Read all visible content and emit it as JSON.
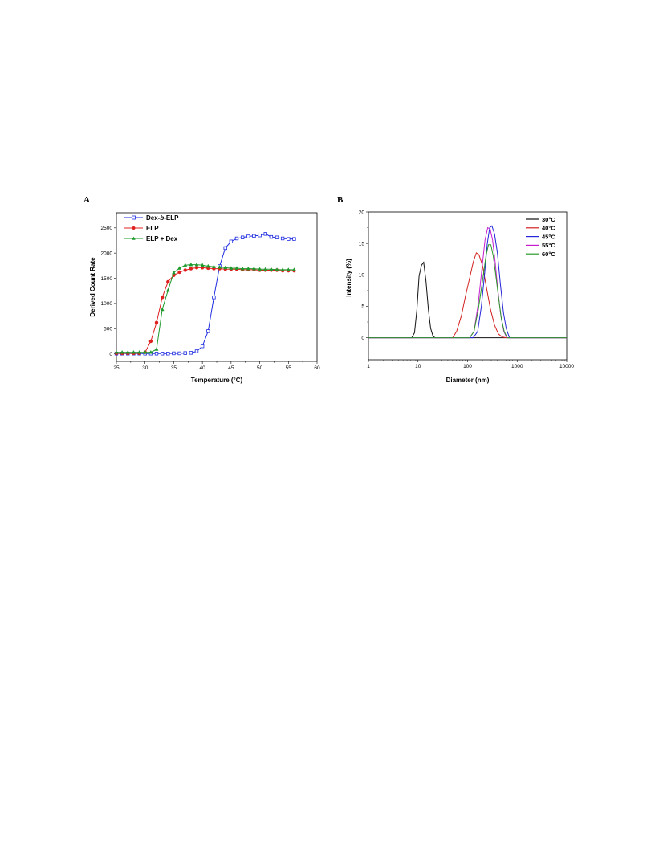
{
  "panels": {
    "a_label": "A",
    "b_label": "B"
  },
  "chart_data": [
    {
      "type": "line",
      "xlabel": "Temperature (°C)",
      "ylabel": "Derived Count Rate",
      "xlim": [
        25,
        60
      ],
      "ylim": [
        -150,
        2800
      ],
      "xticks": [
        "25",
        "30",
        "35",
        "40",
        "45",
        "50",
        "55",
        "60"
      ],
      "yticks": [
        "0",
        "500",
        "1000",
        "1500",
        "2000",
        "2500"
      ],
      "legend_position": "top-left",
      "colors": {
        "Dex-b-ELP": "#1f2de0",
        "ELP": "#e0201f",
        "ELP + Dex": "#1d9a2c"
      },
      "series": [
        {
          "name": "Dex-b-ELP",
          "legend": {
            "pre": "Dex-",
            "italic": "b",
            "post": "-ELP"
          },
          "marker": "square",
          "x": [
            25,
            26,
            27,
            28,
            29,
            30,
            31,
            32,
            33,
            34,
            35,
            36,
            37,
            38,
            39,
            40,
            41,
            42,
            43,
            44,
            45,
            46,
            47,
            48,
            49,
            50,
            51,
            52,
            53,
            54,
            55,
            56
          ],
          "y": [
            5,
            5,
            5,
            5,
            5,
            5,
            5,
            5,
            5,
            5,
            10,
            10,
            15,
            20,
            50,
            150,
            450,
            1120,
            1740,
            2100,
            2230,
            2290,
            2310,
            2330,
            2340,
            2350,
            2380,
            2320,
            2310,
            2290,
            2280,
            2280
          ]
        },
        {
          "name": "ELP",
          "legend": {
            "pre": "ELP",
            "italic": "",
            "post": ""
          },
          "marker": "circle",
          "x": [
            25,
            26,
            27,
            28,
            29,
            30,
            31,
            32,
            33,
            34,
            35,
            36,
            37,
            38,
            39,
            40,
            41,
            42,
            43,
            44,
            45,
            46,
            47,
            48,
            49,
            50,
            51,
            52,
            53,
            54,
            55,
            56
          ],
          "y": [
            10,
            10,
            10,
            10,
            10,
            30,
            250,
            620,
            1120,
            1430,
            1560,
            1620,
            1660,
            1690,
            1710,
            1710,
            1700,
            1690,
            1690,
            1680,
            1680,
            1680,
            1670,
            1670,
            1670,
            1660,
            1660,
            1660,
            1660,
            1650,
            1650,
            1650
          ]
        },
        {
          "name": "ELP + Dex",
          "legend": {
            "pre": "ELP + Dex",
            "italic": "",
            "post": ""
          },
          "marker": "triangle",
          "x": [
            25,
            26,
            27,
            28,
            29,
            30,
            31,
            32,
            33,
            34,
            35,
            36,
            37,
            38,
            39,
            40,
            41,
            42,
            43,
            44,
            45,
            46,
            47,
            48,
            49,
            50,
            51,
            52,
            53,
            54,
            55,
            56
          ],
          "y": [
            30,
            30,
            30,
            30,
            30,
            30,
            30,
            90,
            880,
            1260,
            1610,
            1700,
            1760,
            1770,
            1770,
            1760,
            1740,
            1730,
            1720,
            1710,
            1700,
            1700,
            1690,
            1690,
            1690,
            1680,
            1680,
            1680,
            1670,
            1670,
            1670,
            1670
          ]
        }
      ]
    },
    {
      "type": "line",
      "xlabel": "Diameter (nm)",
      "ylabel": "Intensity (%)",
      "xscale": "log",
      "xlim": [
        1,
        10000
      ],
      "ylim": [
        -3.5,
        20
      ],
      "xticks": [
        "1",
        "10",
        "100",
        "1000",
        "10000"
      ],
      "yticks": [
        "0",
        "5",
        "10",
        "15",
        "20"
      ],
      "legend_position": "top-right",
      "colors": {
        "30°C": "#111111",
        "40°C": "#d42020",
        "45°C": "#2424d8",
        "55°C": "#c41ed0",
        "60°C": "#2a9a2a"
      },
      "series": [
        {
          "name": "30°C",
          "x": [
            1,
            7.5,
            8.5,
            9.5,
            10.5,
            11.7,
            13,
            14.5,
            16.2,
            18,
            20,
            22,
            10000
          ],
          "y": [
            0,
            0,
            0.8,
            4.5,
            9.8,
            11.5,
            12.0,
            9.0,
            4.5,
            1.5,
            0.3,
            0,
            0
          ]
        },
        {
          "name": "40°C",
          "x": [
            1,
            50,
            60,
            75,
            90,
            110,
            130,
            150,
            170,
            200,
            240,
            290,
            350,
            420,
            500,
            600,
            10000
          ],
          "y": [
            0,
            0,
            1.0,
            3.5,
            6.5,
            9.5,
            12.0,
            13.5,
            13.2,
            11.5,
            8.0,
            4.5,
            2.0,
            0.6,
            0.1,
            0,
            0
          ]
        },
        {
          "name": "45°C",
          "x": [
            1,
            130,
            160,
            190,
            220,
            250,
            280,
            310,
            350,
            400,
            460,
            530,
            600,
            700,
            10000
          ],
          "y": [
            0,
            0,
            1.0,
            5.0,
            10.0,
            15.0,
            17.5,
            17.8,
            16.5,
            13.5,
            8.5,
            4.0,
            1.5,
            0,
            0
          ]
        },
        {
          "name": "55°C",
          "x": [
            1,
            110,
            135,
            165,
            195,
            225,
            255,
            285,
            320,
            360,
            410,
            470,
            540,
            620,
            10000
          ],
          "y": [
            0,
            0,
            1.0,
            5.5,
            11.0,
            15.5,
            17.5,
            17.3,
            15.5,
            12.0,
            7.5,
            3.5,
            1.0,
            0,
            0
          ]
        },
        {
          "name": "60°C",
          "x": [
            1,
            110,
            135,
            165,
            200,
            235,
            265,
            295,
            330,
            370,
            420,
            480,
            550,
            630,
            10000
          ],
          "y": [
            0,
            0,
            1.0,
            4.5,
            9.0,
            13.0,
            14.8,
            14.8,
            13.0,
            10.0,
            6.5,
            3.0,
            1.0,
            0,
            0
          ]
        },
        {
          "name": "_zero",
          "x": [
            1,
            10000
          ],
          "y": [
            0,
            0
          ]
        }
      ]
    }
  ]
}
